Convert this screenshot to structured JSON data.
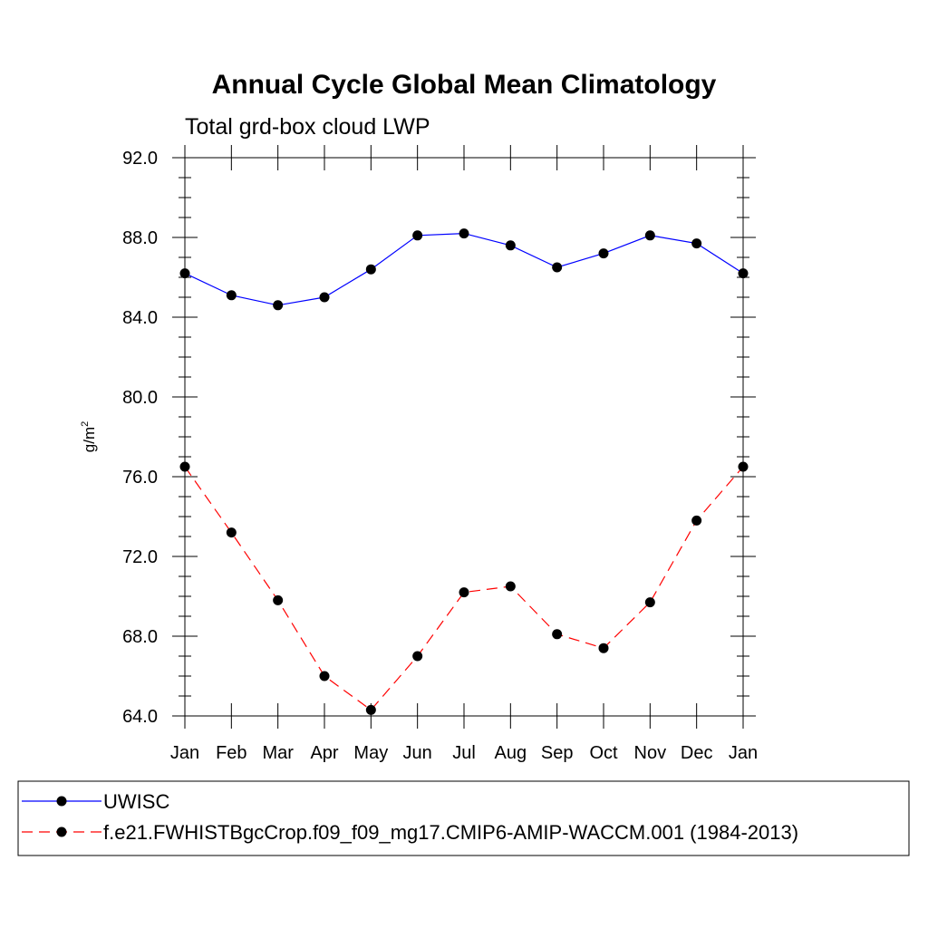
{
  "chart_data": {
    "type": "line",
    "title": "Annual Cycle Global Mean Climatology",
    "subtitle": "Total grd-box cloud LWP",
    "ylabel": "g/m",
    "ylabel_sup": "2",
    "categories": [
      "Jan",
      "Feb",
      "Mar",
      "Apr",
      "May",
      "Jun",
      "Jul",
      "Aug",
      "Sep",
      "Oct",
      "Nov",
      "Dec",
      "Jan"
    ],
    "ylim": [
      64.0,
      92.0
    ],
    "yticks": [
      "64.0",
      "68.0",
      "72.0",
      "76.0",
      "80.0",
      "84.0",
      "88.0",
      "92.0"
    ],
    "grid": false,
    "legend_position": "bottom",
    "series": [
      {
        "name": "UWISC",
        "color": "#0000ff",
        "dash": "solid",
        "values": [
          86.2,
          85.1,
          84.6,
          85.0,
          86.4,
          88.1,
          88.2,
          87.6,
          86.5,
          87.2,
          88.1,
          87.7,
          86.2
        ]
      },
      {
        "name": "f.e21.FWHISTBgcCrop.f09_f09_mg17.CMIP6-AMIP-WACCM.001 (1984-2013)",
        "color": "#ff0000",
        "dash": "dashed",
        "values": [
          76.5,
          73.2,
          69.8,
          66.0,
          64.3,
          67.0,
          70.2,
          70.5,
          68.1,
          67.4,
          69.7,
          73.8,
          76.5
        ]
      }
    ]
  }
}
